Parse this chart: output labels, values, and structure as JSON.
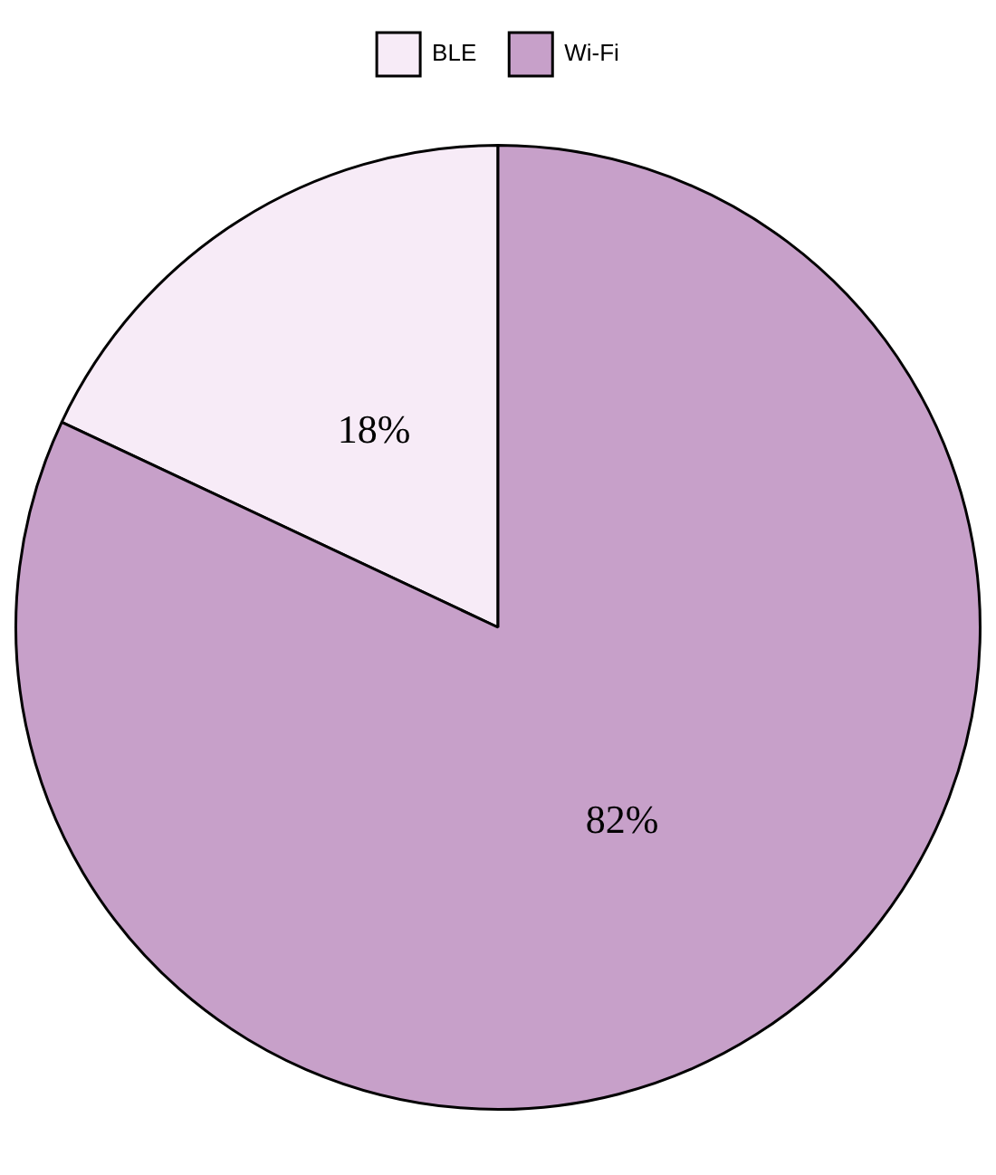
{
  "chart_data": {
    "type": "pie",
    "categories": [
      "BLE",
      "Wi-Fi"
    ],
    "values": [
      18,
      82
    ],
    "colors": [
      "#f7ebf7",
      "#c7a0c9"
    ],
    "value_labels": [
      "18%",
      "82%"
    ],
    "legend": "top"
  }
}
